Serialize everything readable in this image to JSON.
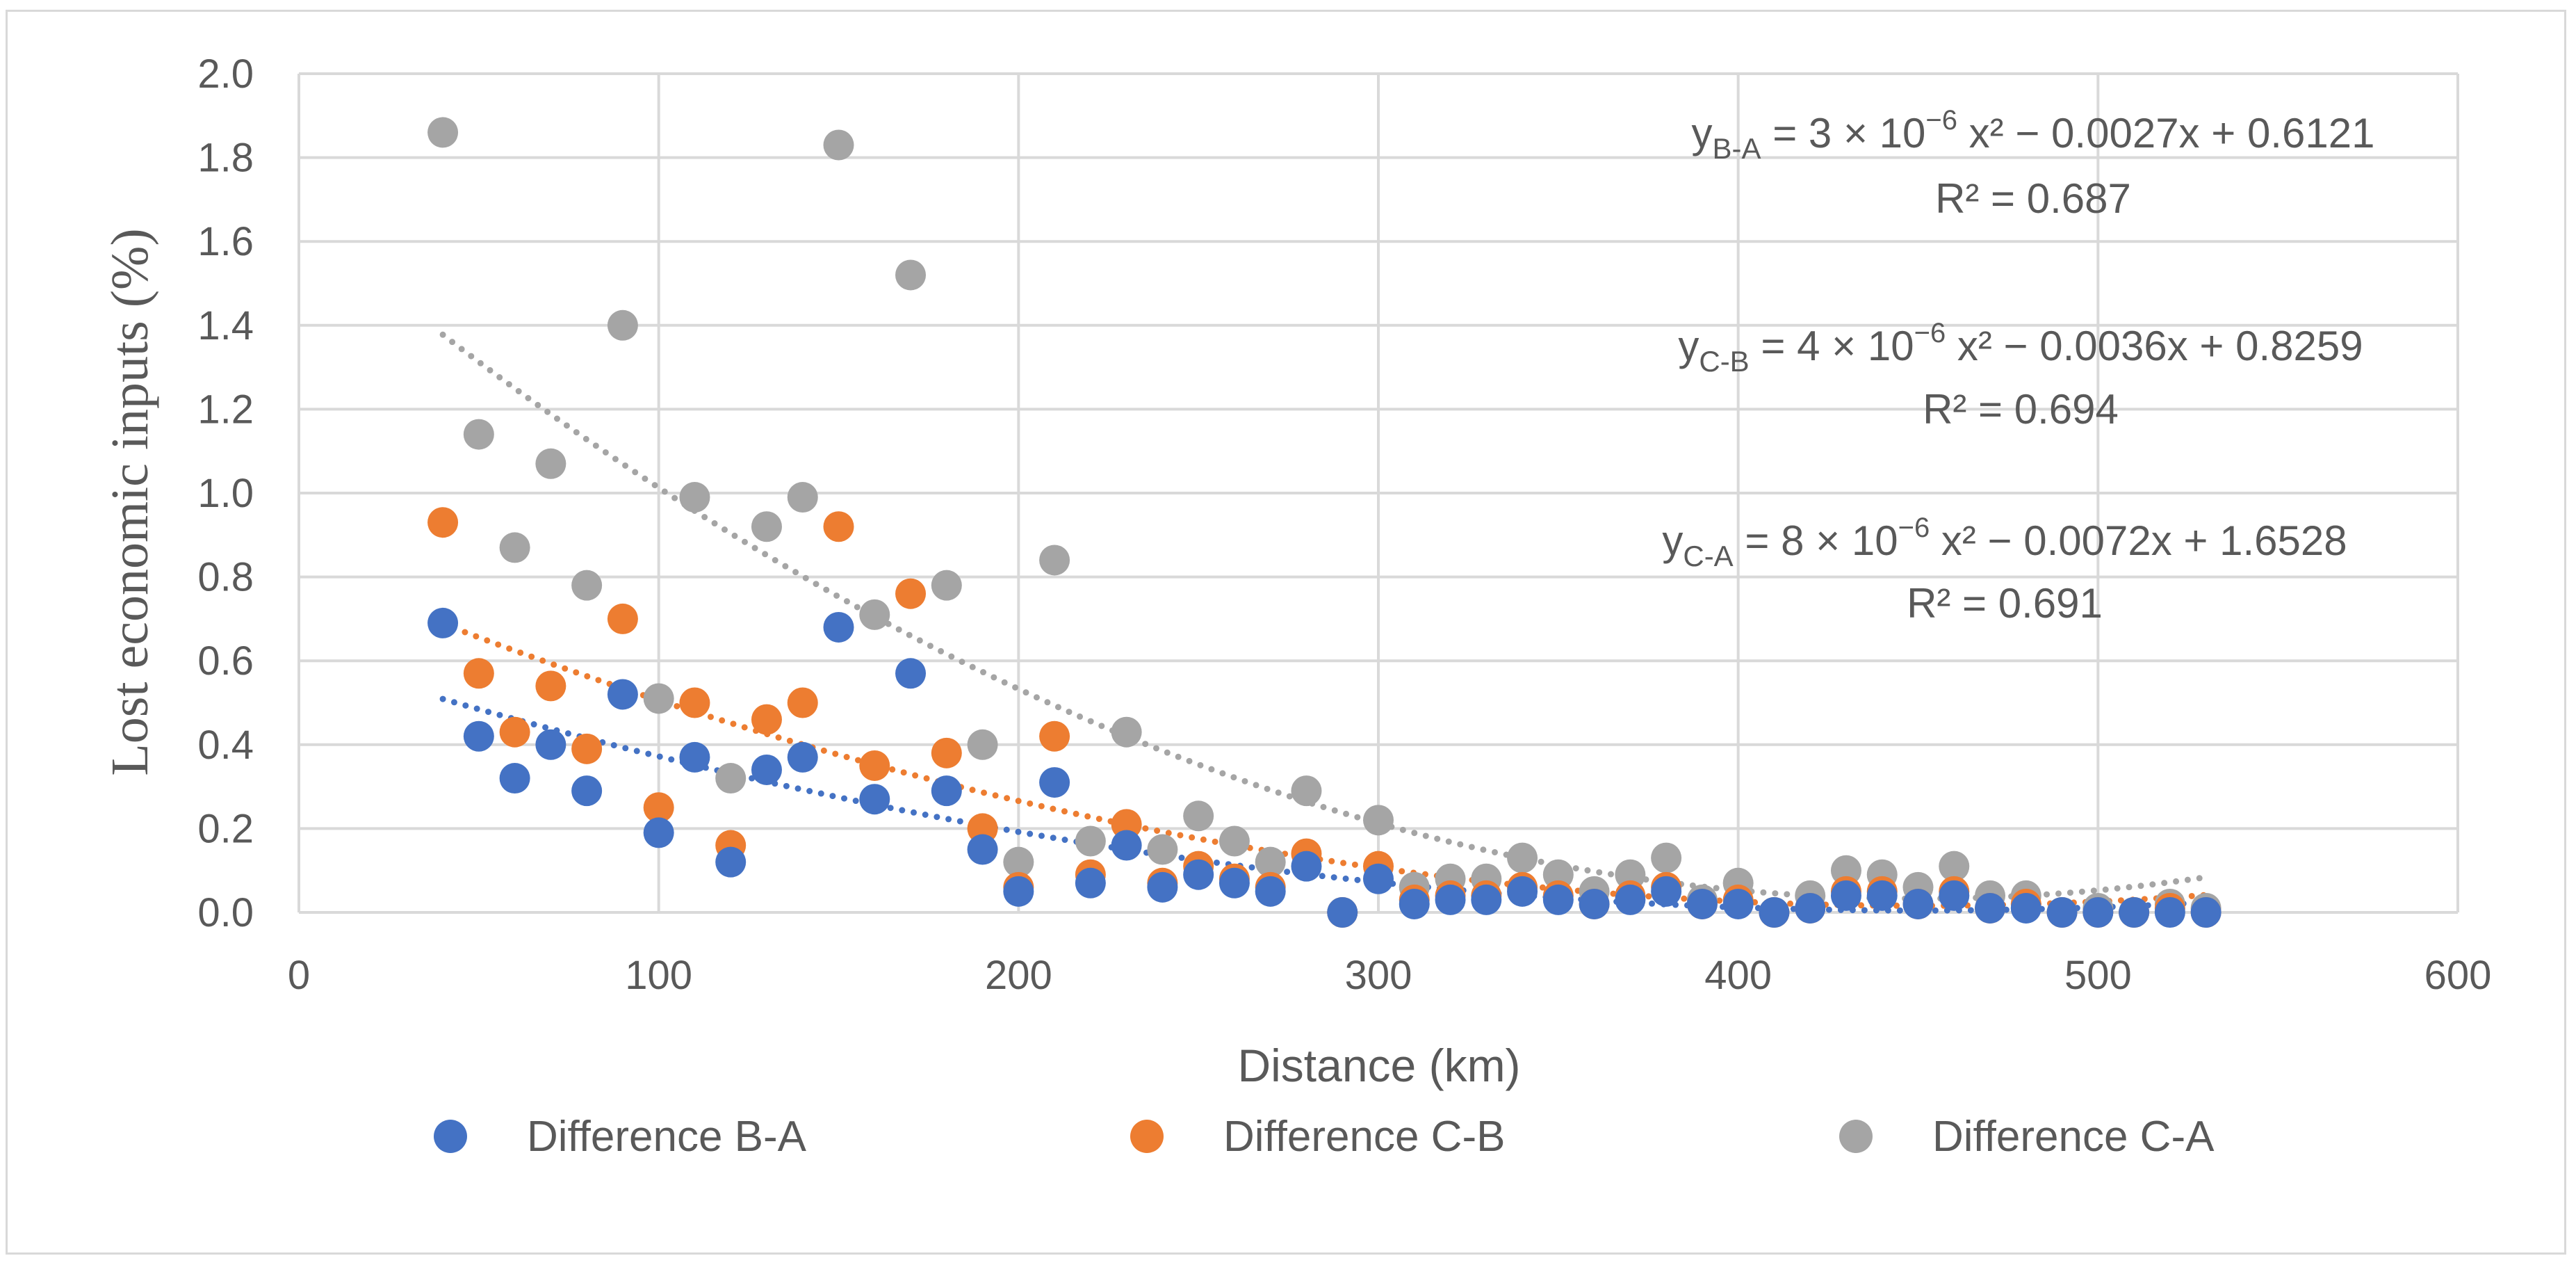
{
  "chart_data": {
    "type": "scatter",
    "title": "",
    "xlabel": "Distance (km)",
    "ylabel": "Lost economic inputs (%)",
    "xlim": [
      0,
      600
    ],
    "ylim": [
      0,
      2.0
    ],
    "xticks": [
      "0",
      "100",
      "200",
      "300",
      "400",
      "500",
      "600"
    ],
    "yticks": [
      "0.0",
      "0.2",
      "0.4",
      "0.6",
      "0.8",
      "1.0",
      "1.2",
      "1.4",
      "1.6",
      "1.8",
      "2.0"
    ],
    "grid": true,
    "legend_position": "bottom",
    "series": [
      {
        "name": "Difference B-A",
        "color": "#4472c4",
        "trendline": {
          "a": 3e-06,
          "b": -0.0027,
          "c": 0.6121,
          "x_from": 40,
          "x_to": 530
        },
        "points": [
          [
            40,
            0.69
          ],
          [
            50,
            0.42
          ],
          [
            60,
            0.32
          ],
          [
            70,
            0.4
          ],
          [
            80,
            0.29
          ],
          [
            90,
            0.52
          ],
          [
            100,
            0.19
          ],
          [
            110,
            0.37
          ],
          [
            120,
            0.12
          ],
          [
            130,
            0.34
          ],
          [
            140,
            0.37
          ],
          [
            150,
            0.68
          ],
          [
            160,
            0.27
          ],
          [
            170,
            0.57
          ],
          [
            180,
            0.29
          ],
          [
            190,
            0.15
          ],
          [
            200,
            0.05
          ],
          [
            210,
            0.31
          ],
          [
            220,
            0.07
          ],
          [
            230,
            0.16
          ],
          [
            240,
            0.06
          ],
          [
            250,
            0.09
          ],
          [
            260,
            0.07
          ],
          [
            270,
            0.05
          ],
          [
            280,
            0.11
          ],
          [
            290,
            0.0
          ],
          [
            300,
            0.08
          ],
          [
            310,
            0.02
          ],
          [
            320,
            0.03
          ],
          [
            330,
            0.03
          ],
          [
            340,
            0.05
          ],
          [
            350,
            0.03
          ],
          [
            360,
            0.02
          ],
          [
            370,
            0.03
          ],
          [
            380,
            0.05
          ],
          [
            390,
            0.02
          ],
          [
            400,
            0.02
          ],
          [
            410,
            0.0
          ],
          [
            420,
            0.01
          ],
          [
            430,
            0.04
          ],
          [
            440,
            0.04
          ],
          [
            450,
            0.02
          ],
          [
            460,
            0.04
          ],
          [
            470,
            0.01
          ],
          [
            480,
            0.01
          ],
          [
            490,
            0.0
          ],
          [
            500,
            0.0
          ],
          [
            510,
            0.0
          ],
          [
            520,
            0.0
          ],
          [
            530,
            0.0
          ]
        ]
      },
      {
        "name": "Difference C-B",
        "color": "#ed7d31",
        "trendline": {
          "a": 4e-06,
          "b": -0.0036,
          "c": 0.8259,
          "x_from": 40,
          "x_to": 530
        },
        "points": [
          [
            40,
            0.93
          ],
          [
            50,
            0.57
          ],
          [
            60,
            0.43
          ],
          [
            70,
            0.54
          ],
          [
            80,
            0.39
          ],
          [
            90,
            0.7
          ],
          [
            100,
            0.25
          ],
          [
            110,
            0.5
          ],
          [
            120,
            0.16
          ],
          [
            130,
            0.46
          ],
          [
            140,
            0.5
          ],
          [
            150,
            0.92
          ],
          [
            160,
            0.35
          ],
          [
            170,
            0.76
          ],
          [
            180,
            0.38
          ],
          [
            190,
            0.2
          ],
          [
            200,
            0.06
          ],
          [
            210,
            0.42
          ],
          [
            220,
            0.09
          ],
          [
            230,
            0.21
          ],
          [
            240,
            0.07
          ],
          [
            250,
            0.11
          ],
          [
            260,
            0.08
          ],
          [
            270,
            0.06
          ],
          [
            280,
            0.14
          ],
          [
            290,
            0.0
          ],
          [
            300,
            0.11
          ],
          [
            310,
            0.03
          ],
          [
            320,
            0.04
          ],
          [
            330,
            0.04
          ],
          [
            340,
            0.06
          ],
          [
            350,
            0.04
          ],
          [
            360,
            0.02
          ],
          [
            370,
            0.04
          ],
          [
            380,
            0.06
          ],
          [
            390,
            0.02
          ],
          [
            400,
            0.03
          ],
          [
            410,
            0.0
          ],
          [
            420,
            0.01
          ],
          [
            430,
            0.05
          ],
          [
            440,
            0.05
          ],
          [
            450,
            0.02
          ],
          [
            460,
            0.05
          ],
          [
            470,
            0.01
          ],
          [
            480,
            0.02
          ],
          [
            490,
            0.0
          ],
          [
            500,
            0.0
          ],
          [
            510,
            0.0
          ],
          [
            520,
            0.01
          ],
          [
            530,
            0.0
          ]
        ]
      },
      {
        "name": "Difference C-A",
        "color": "#a5a5a5",
        "trendline": {
          "a": 8e-06,
          "b": -0.0072,
          "c": 1.6528,
          "x_from": 40,
          "x_to": 530
        },
        "points": [
          [
            40,
            1.86
          ],
          [
            50,
            1.14
          ],
          [
            60,
            0.87
          ],
          [
            70,
            1.07
          ],
          [
            80,
            0.78
          ],
          [
            90,
            1.4
          ],
          [
            100,
            0.51
          ],
          [
            110,
            0.99
          ],
          [
            120,
            0.32
          ],
          [
            130,
            0.92
          ],
          [
            140,
            0.99
          ],
          [
            150,
            1.83
          ],
          [
            160,
            0.71
          ],
          [
            170,
            1.52
          ],
          [
            180,
            0.78
          ],
          [
            190,
            0.4
          ],
          [
            200,
            0.12
          ],
          [
            210,
            0.84
          ],
          [
            220,
            0.17
          ],
          [
            230,
            0.43
          ],
          [
            240,
            0.15
          ],
          [
            250,
            0.23
          ],
          [
            260,
            0.17
          ],
          [
            270,
            0.12
          ],
          [
            280,
            0.29
          ],
          [
            290,
            0.0
          ],
          [
            300,
            0.22
          ],
          [
            310,
            0.06
          ],
          [
            320,
            0.08
          ],
          [
            330,
            0.08
          ],
          [
            340,
            0.13
          ],
          [
            350,
            0.09
          ],
          [
            360,
            0.05
          ],
          [
            370,
            0.09
          ],
          [
            380,
            0.13
          ],
          [
            390,
            0.03
          ],
          [
            400,
            0.07
          ],
          [
            410,
            0.0
          ],
          [
            420,
            0.04
          ],
          [
            430,
            0.1
          ],
          [
            440,
            0.09
          ],
          [
            450,
            0.06
          ],
          [
            460,
            0.11
          ],
          [
            470,
            0.04
          ],
          [
            480,
            0.04
          ],
          [
            490,
            0.0
          ],
          [
            500,
            0.01
          ],
          [
            510,
            0.0
          ],
          [
            520,
            0.02
          ],
          [
            530,
            0.01
          ]
        ]
      }
    ],
    "annotations": [
      {
        "sub": "B-A",
        "rest": "= 3 × 10",
        "exp": "−6",
        "tail": " x² − 0.0027x + 0.6121",
        "r2": "R² = 0.687"
      },
      {
        "sub": "C-B",
        "rest": "= 4 × 10",
        "exp": "−6",
        "tail": " x² − 0.0036x + 0.8259",
        "r2": "R² = 0.694"
      },
      {
        "sub": "C-A",
        "rest": "= 8 × 10",
        "exp": "−6",
        "tail": " x² − 0.0072x + 1.6528",
        "r2": "R² = 0.691"
      }
    ]
  }
}
